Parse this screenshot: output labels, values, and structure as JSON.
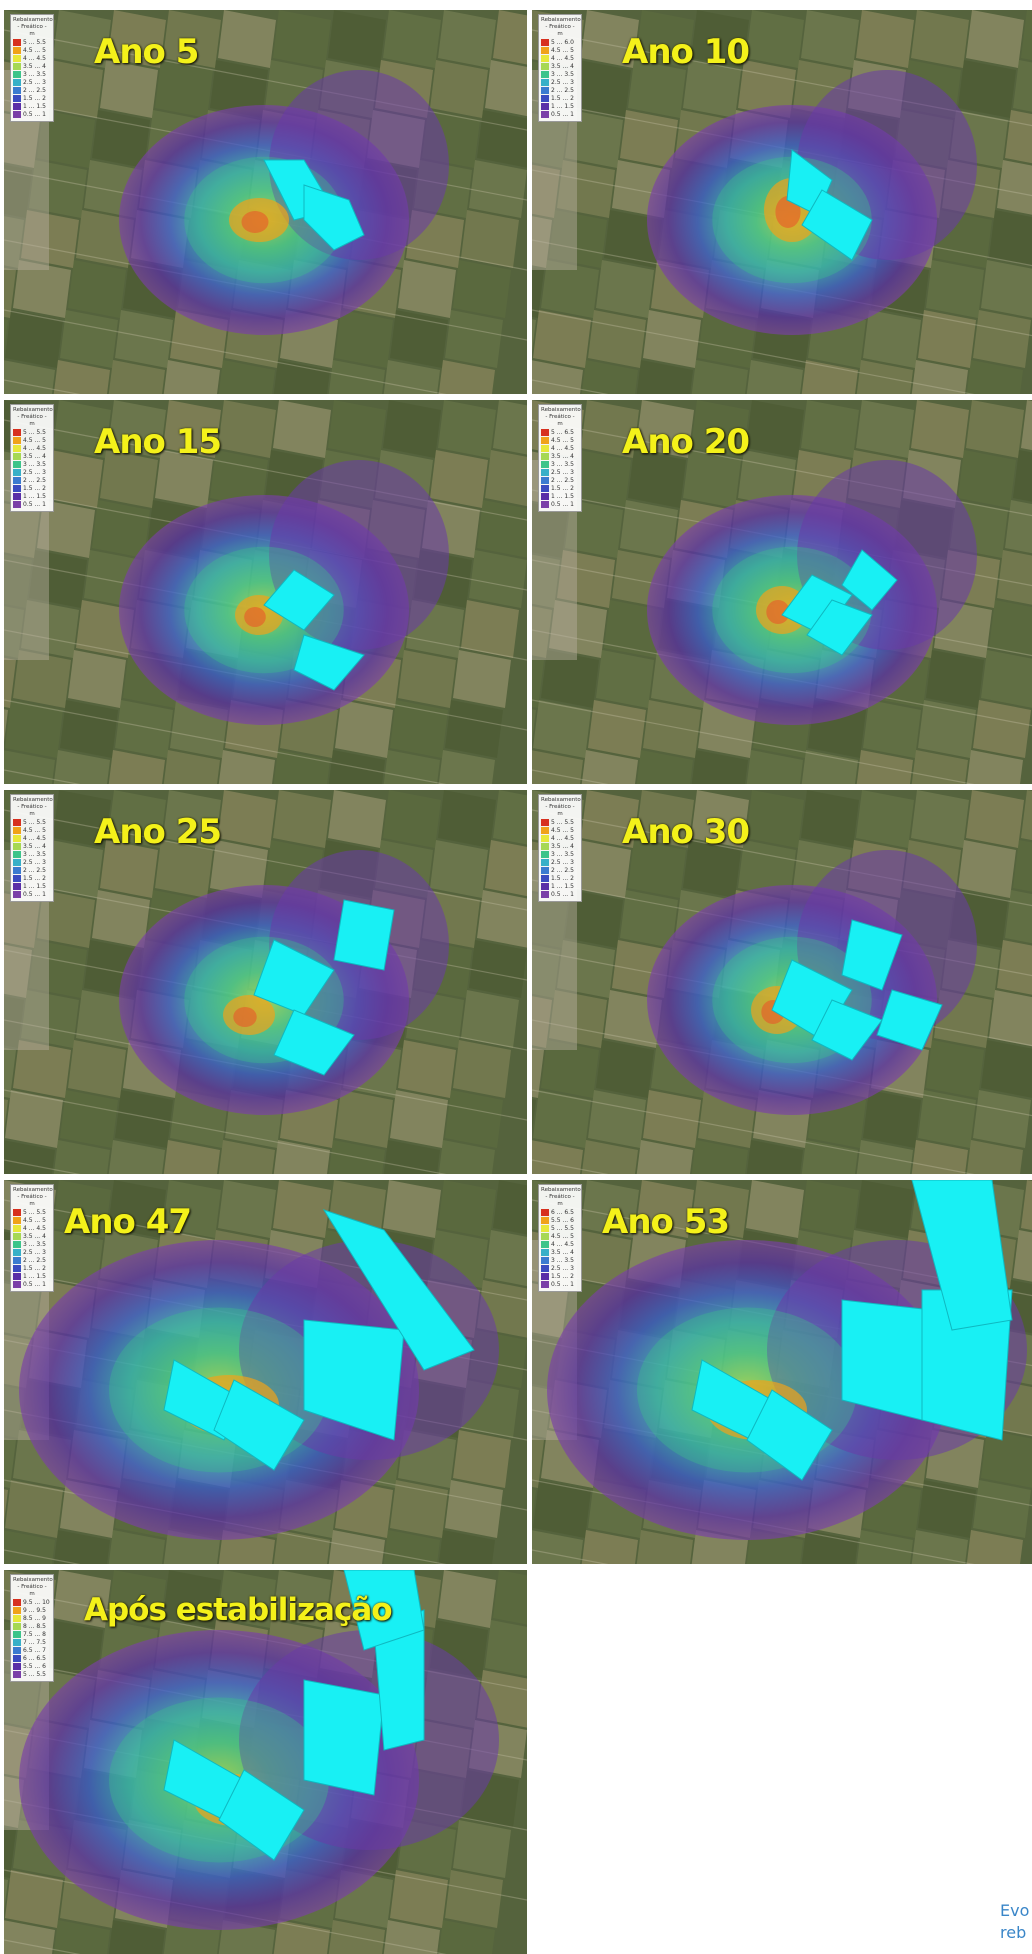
{
  "legend": {
    "title": "Rebaixamento",
    "subtitle": "- Freático -",
    "unit": "m",
    "colors": [
      "#d7301f",
      "#f0a21a",
      "#e8e83a",
      "#a6d854",
      "#3cc48a",
      "#37b0c8",
      "#3b7bd0",
      "#3b4cc0",
      "#5a2fa8",
      "#7a3fa8"
    ]
  },
  "panels": [
    {
      "title": "Ano 5",
      "legend_values": [
        "5 ... 5.5",
        "4.5 ... 5",
        "4 ... 4.5",
        "3.5 ... 4",
        "3 ... 3.5",
        "2.5 ... 3",
        "2 ... 2.5",
        "1.5 ... 2",
        "1 ... 1.5",
        "0.5 ... 1"
      ]
    },
    {
      "title": "Ano 10",
      "legend_values": [
        "5 ... 6.0",
        "4.5 ... 5",
        "4 ... 4.5",
        "3.5 ... 4",
        "3 ... 3.5",
        "2.5 ... 3",
        "2 ... 2.5",
        "1.5 ... 2",
        "1 ... 1.5",
        "0.5 ... 1"
      ]
    },
    {
      "title": "Ano 15",
      "legend_values": [
        "5 ... 5.5",
        "4.5 ... 5",
        "4 ... 4.5",
        "3.5 ... 4",
        "3 ... 3.5",
        "2.5 ... 3",
        "2 ... 2.5",
        "1.5 ... 2",
        "1 ... 1.5",
        "0.5 ... 1"
      ]
    },
    {
      "title": "Ano 20",
      "legend_values": [
        "5 ... 6.5",
        "4.5 ... 5",
        "4 ... 4.5",
        "3.5 ... 4",
        "3 ... 3.5",
        "2.5 ... 3",
        "2 ... 2.5",
        "1.5 ... 2",
        "1 ... 1.5",
        "0.5 ... 1"
      ]
    },
    {
      "title": "Ano 25",
      "legend_values": [
        "5 ... 5.5",
        "4.5 ... 5",
        "4 ... 4.5",
        "3.5 ... 4",
        "3 ... 3.5",
        "2.5 ... 3",
        "2 ... 2.5",
        "1.5 ... 2",
        "1 ... 1.5",
        "0.5 ... 1"
      ]
    },
    {
      "title": "Ano 30",
      "legend_values": [
        "5 ... 5.5",
        "4.5 ... 5",
        "4 ... 4.5",
        "3.5 ... 4",
        "3 ... 3.5",
        "2.5 ... 3",
        "2 ... 2.5",
        "1.5 ... 2",
        "1 ... 1.5",
        "0.5 ... 1"
      ]
    },
    {
      "title": "Ano 47",
      "legend_values": [
        "5 ... 5.5",
        "4.5 ... 5",
        "4 ... 4.5",
        "3.5 ... 4",
        "3 ... 3.5",
        "2.5 ... 3",
        "2 ... 2.5",
        "1.5 ... 2",
        "1 ... 1.5",
        "0.5 ... 1"
      ]
    },
    {
      "title": "Ano 53",
      "legend_values": [
        "6 ... 6.5",
        "5.5 ... 6",
        "5 ... 5.5",
        "4.5 ... 5",
        "4 ... 4.5",
        "3.5 ... 4",
        "3 ... 3.5",
        "2.5 ... 3",
        "1.5 ... 2",
        "0.5 ... 1"
      ]
    },
    {
      "title": "Após estabilização",
      "legend_values": [
        "9.5 ... 10",
        "9 ... 9.5",
        "8.5 ... 9",
        "8 ... 8.5",
        "7.5 ... 8",
        "7 ... 7.5",
        "6.5 ... 7",
        "6 ... 6.5",
        "5.5 ... 6",
        "5 ... 5.5"
      ]
    }
  ],
  "caption": {
    "line1": "Evo",
    "line2": "reb"
  }
}
